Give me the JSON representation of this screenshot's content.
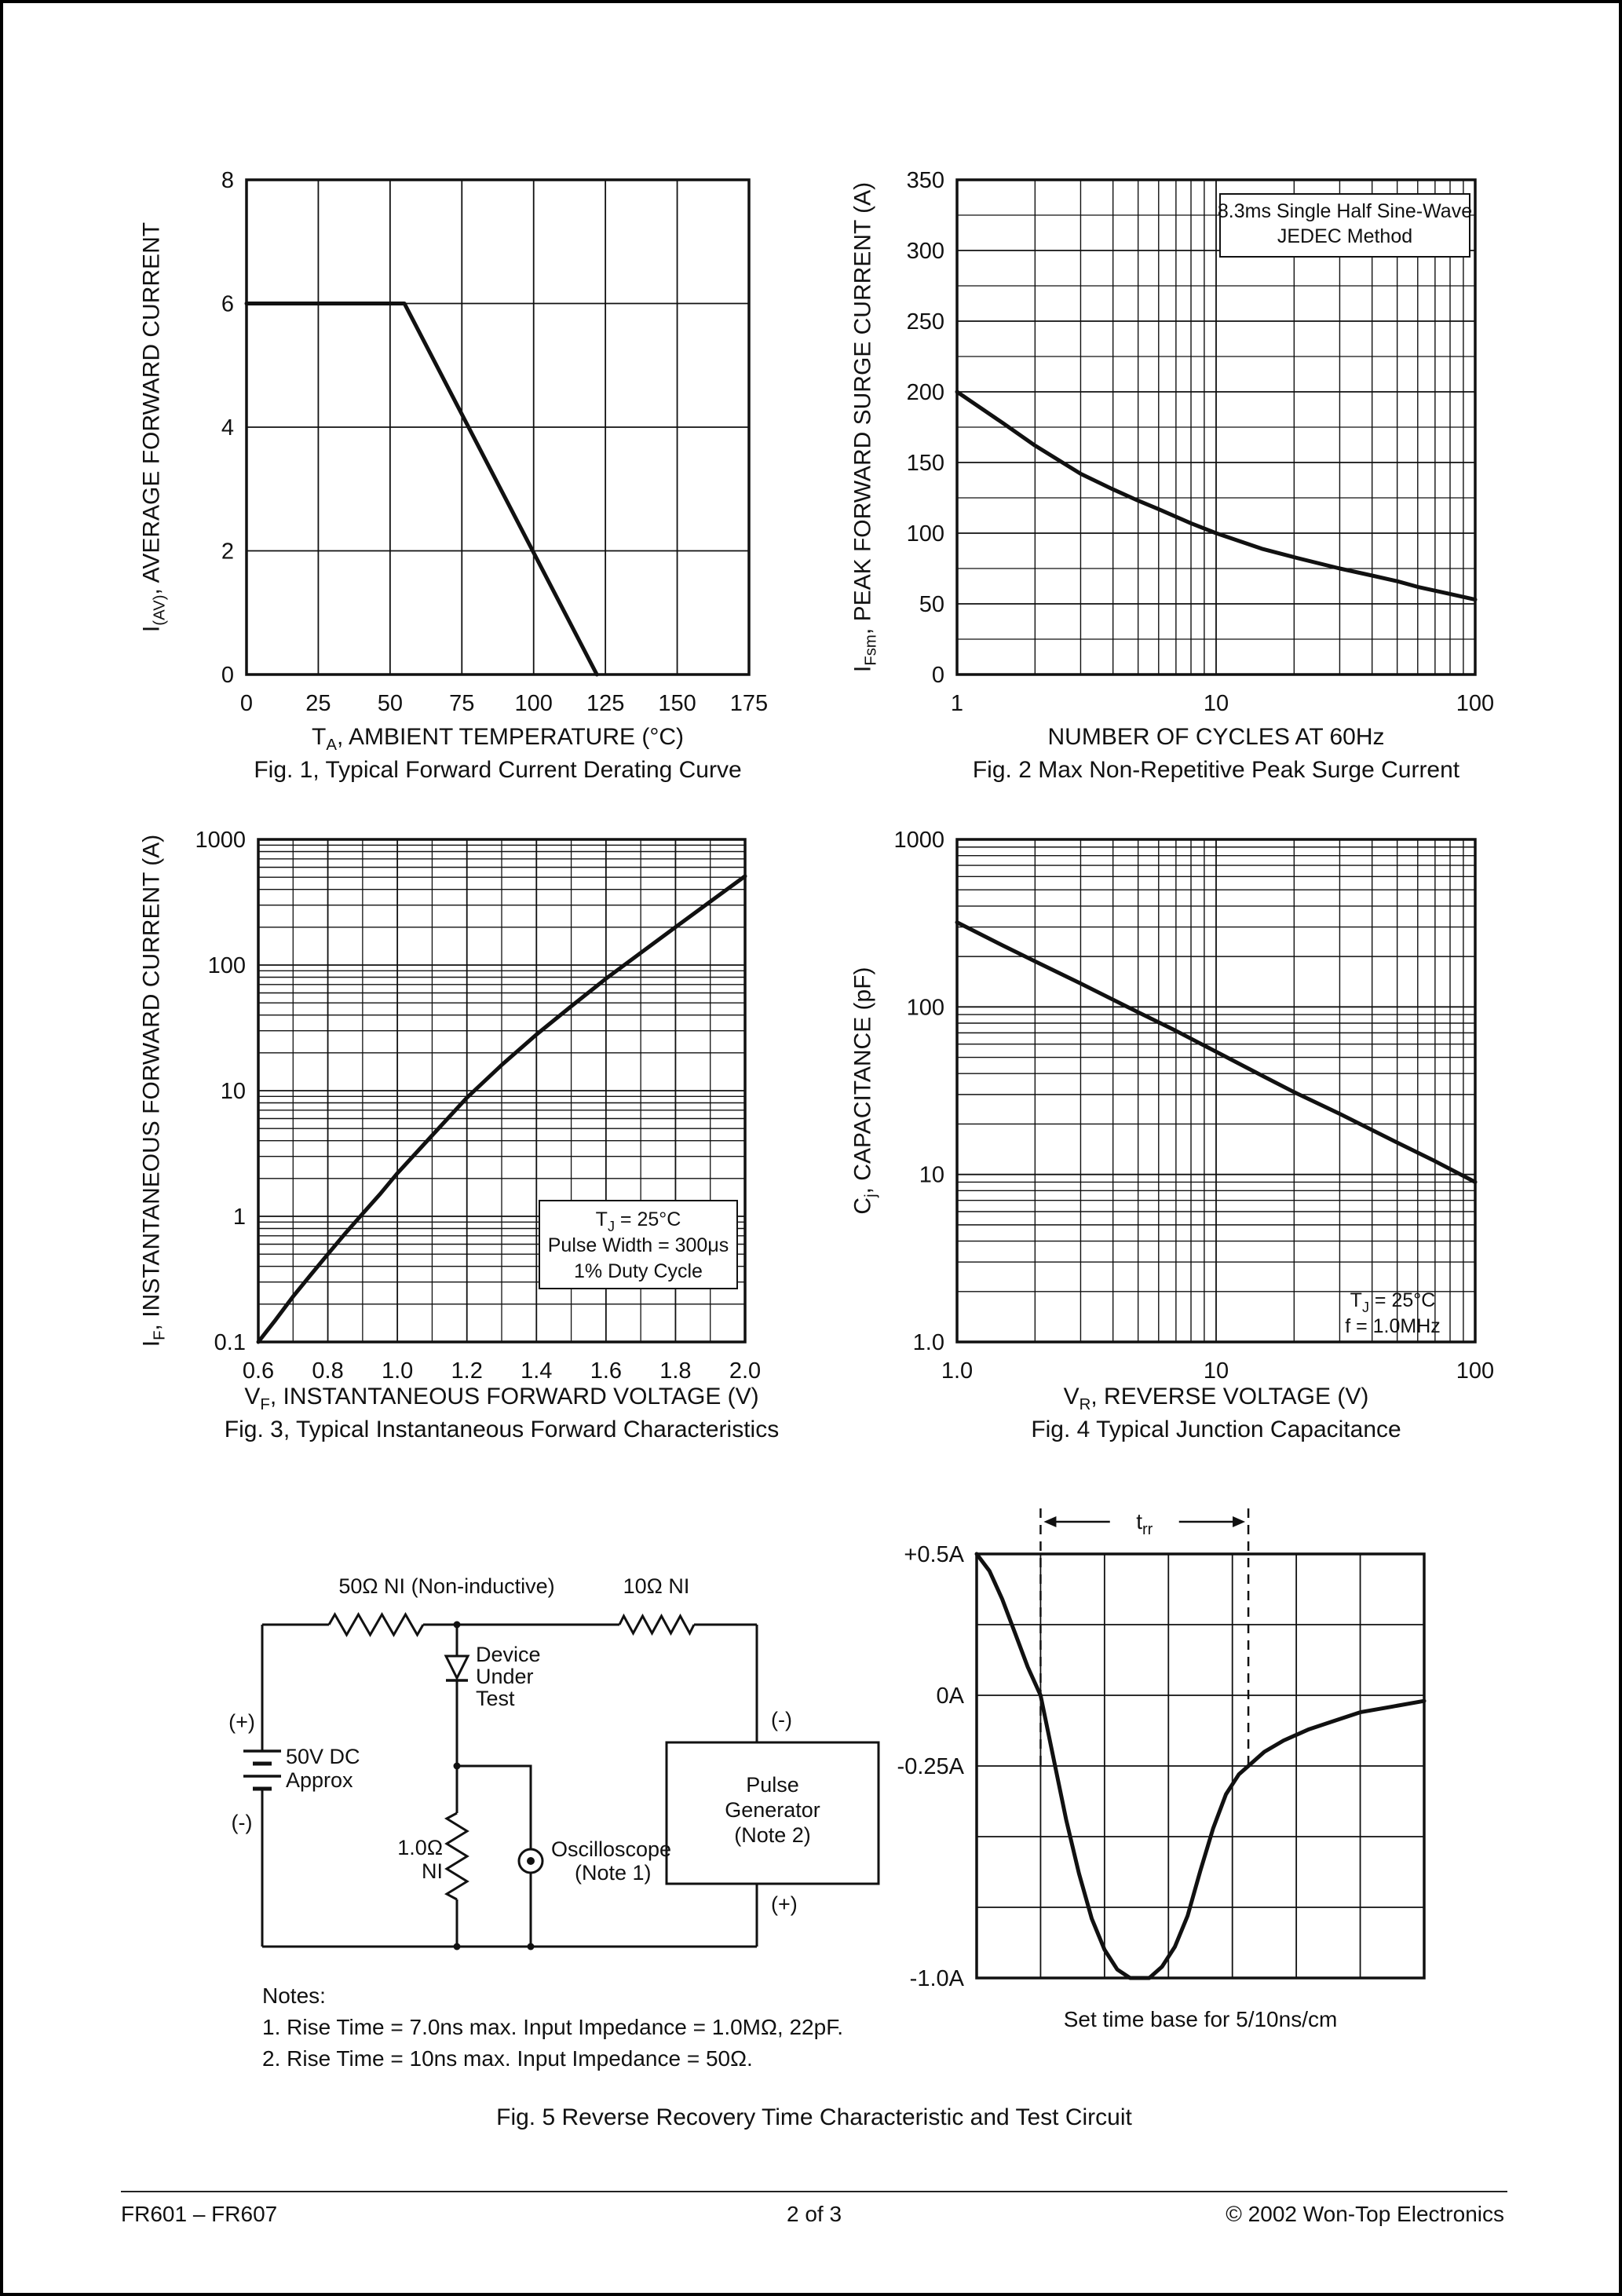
{
  "colors": {
    "ink": "#111111",
    "paper": "#ffffff"
  },
  "footer": {
    "left": "FR601 – FR607",
    "center": "2 of 3",
    "right": "© 2002 Won-Top Electronics"
  },
  "fig1": {
    "y_title": {
      "pre": "I",
      "sub": "(AV)",
      "rest": ", AVERAGE FORWARD CURRENT"
    },
    "x_title": {
      "pre": "T",
      "sub": "A",
      "rest": ", AMBIENT TEMPERATURE (°C)"
    },
    "caption": "Fig. 1, Typical Forward Current Derating Curve"
  },
  "fig2": {
    "y_title": {
      "pre": "I",
      "sub": "Fsm",
      "rest": ", PEAK FORWARD SURGE CURRENT (A)"
    },
    "x_title": {
      "text": "NUMBER OF CYCLES AT 60Hz"
    },
    "caption": "Fig. 2 Max Non-Repetitive Peak Surge Current"
  },
  "fig3": {
    "y_title": {
      "pre": "I",
      "sub": "F",
      "rest": ", INSTANTANEOUS FORWARD CURRENT (A)"
    },
    "x_title": {
      "pre": "V",
      "sub": "F",
      "rest": ", INSTANTANEOUS FORWARD VOLTAGE (V)"
    },
    "caption": "Fig. 3, Typical Instantaneous Forward Characteristics"
  },
  "fig4": {
    "y_title": {
      "pre": "C",
      "sub": "j",
      "rest": ", CAPACITANCE (pF)"
    },
    "x_title": {
      "pre": "V",
      "sub": "R",
      "rest": ", REVERSE VOLTAGE (V)"
    },
    "caption": "Fig. 4 Typical Junction Capacitance"
  },
  "fig5": {
    "caption": "Fig. 5 Reverse Recovery Time Characteristic and Test Circuit",
    "timebase": "Set time base for 5/10ns/cm",
    "notes": {
      "title": "Notes:",
      "line1": "1. Rise Time = 7.0ns max. Input Impedance = 1.0MΩ, 22pF.",
      "line2": "2. Rise Time = 10ns max. Input Impedance = 50Ω."
    },
    "circuit": {
      "r1_label": "50Ω NI (Non-inductive)",
      "r2_label": "10Ω NI",
      "dut": [
        "Device",
        "Under",
        "Test"
      ],
      "plus": "(+)",
      "minus": "(-)",
      "battery": [
        "50V DC",
        "Approx"
      ],
      "r3": [
        "1.0Ω",
        "NI"
      ],
      "scope": [
        "Oscilloscope",
        "(Note 1)"
      ],
      "pulse_gen": [
        "Pulse",
        "Generator",
        "(Note 2)"
      ],
      "pg_minus": "(-)",
      "pg_plus": "(+)"
    }
  },
  "chart_data": [
    {
      "id": "fig1",
      "type": "line",
      "title": "Fig. 1, Typical Forward Current Derating Curve",
      "xlabel": "TA, AMBIENT TEMPERATURE (°C)",
      "ylabel": "I(AV), AVERAGE FORWARD CURRENT",
      "x": {
        "scale": "linear",
        "min": 0,
        "max": 175,
        "ticks": [
          0,
          25,
          50,
          75,
          100,
          125,
          150,
          175
        ],
        "tick_labels": [
          "0",
          "25",
          "50",
          "75",
          "100",
          "125",
          "150",
          "175"
        ],
        "grid": [
          25,
          50,
          75,
          100,
          125,
          150
        ]
      },
      "y": {
        "scale": "linear",
        "min": 0,
        "max": 8,
        "ticks": [
          0,
          2,
          4,
          6,
          8
        ],
        "tick_labels": [
          "0",
          "2",
          "4",
          "6",
          "8"
        ],
        "grid": [
          2,
          4,
          6
        ]
      },
      "series": [
        {
          "name": "Typical forward current derating",
          "points": [
            [
              0,
              6
            ],
            [
              55,
              6
            ],
            [
              122,
              0
            ]
          ]
        }
      ]
    },
    {
      "id": "fig2",
      "type": "line",
      "title": "Fig. 2 Max Non-Repetitive Peak Surge Current",
      "xlabel": "NUMBER OF CYCLES AT 60Hz",
      "ylabel": "IFsm, PEAK FORWARD SURGE CURRENT (A)",
      "x": {
        "scale": "log",
        "min": 1,
        "max": 100,
        "ticks": [
          1,
          10,
          100
        ],
        "tick_labels": [
          "1",
          "10",
          "100"
        ]
      },
      "y": {
        "scale": "linear",
        "min": 0,
        "max": 350,
        "ticks": [
          0,
          50,
          100,
          150,
          200,
          250,
          300,
          350
        ],
        "tick_labels": [
          "0",
          "50",
          "100",
          "150",
          "200",
          "250",
          "300",
          "350"
        ],
        "grid": [
          50,
          100,
          150,
          200,
          250,
          300
        ],
        "minor_grid": [
          25,
          75,
          125,
          175,
          225,
          275,
          325
        ]
      },
      "annotation": {
        "box": true,
        "lines": [
          [
            {
              "t": "8.3ms Single Half Sine-Wave"
            }
          ],
          [
            {
              "t": "JEDEC Method"
            }
          ]
        ]
      },
      "series": [
        {
          "name": "Peak forward surge current",
          "points": [
            [
              1,
              200
            ],
            [
              1.5,
              178
            ],
            [
              2,
              162
            ],
            [
              3,
              142
            ],
            [
              4,
              131
            ],
            [
              5,
              123
            ],
            [
              6,
              117
            ],
            [
              8,
              107
            ],
            [
              10,
              100
            ],
            [
              15,
              89
            ],
            [
              20,
              83
            ],
            [
              30,
              75
            ],
            [
              40,
              70
            ],
            [
              50,
              66
            ],
            [
              60,
              62
            ],
            [
              80,
              57
            ],
            [
              100,
              53
            ]
          ]
        }
      ]
    },
    {
      "id": "fig3",
      "type": "line",
      "title": "Fig. 3, Typical Instantaneous Forward Characteristics",
      "xlabel": "VF, INSTANTANEOUS FORWARD VOLTAGE (V)",
      "ylabel": "IF, INSTANTANEOUS FORWARD CURRENT (A)",
      "x": {
        "scale": "linear",
        "min": 0.6,
        "max": 2.0,
        "ticks": [
          0.6,
          0.8,
          1.0,
          1.2,
          1.4,
          1.6,
          1.8,
          2.0
        ],
        "tick_labels": [
          "0.6",
          "0.8",
          "1.0",
          "1.2",
          "1.4",
          "1.6",
          "1.8",
          "2.0"
        ],
        "grid": [
          0.8,
          1.0,
          1.2,
          1.4,
          1.6,
          1.8
        ],
        "minor_grid": [
          0.7,
          0.9,
          1.1,
          1.3,
          1.5,
          1.7,
          1.9
        ]
      },
      "y": {
        "scale": "log",
        "min": 0.1,
        "max": 1000,
        "ticks": [
          0.1,
          1,
          10,
          100,
          1000
        ],
        "tick_labels": [
          "0.1",
          "1",
          "10",
          "100",
          "1000"
        ]
      },
      "annotation": {
        "box": true,
        "lines": [
          [
            {
              "t": "T"
            },
            {
              "sub": "J"
            },
            {
              "t": " = 25°C"
            }
          ],
          [
            {
              "t": "Pulse Width = 300μs"
            }
          ],
          [
            {
              "t": "1% Duty Cycle"
            }
          ]
        ]
      },
      "series": [
        {
          "name": "Instantaneous forward current",
          "points": [
            [
              0.6,
              0.1
            ],
            [
              0.65,
              0.15
            ],
            [
              0.7,
              0.23
            ],
            [
              0.75,
              0.34
            ],
            [
              0.8,
              0.5
            ],
            [
              0.85,
              0.73
            ],
            [
              0.9,
              1.05
            ],
            [
              0.95,
              1.5
            ],
            [
              1.0,
              2.2
            ],
            [
              1.1,
              4.4
            ],
            [
              1.2,
              8.8
            ],
            [
              1.3,
              16
            ],
            [
              1.4,
              28
            ],
            [
              1.5,
              47
            ],
            [
              1.6,
              78
            ],
            [
              1.7,
              125
            ],
            [
              1.8,
              200
            ],
            [
              1.9,
              320
            ],
            [
              2.0,
              510
            ]
          ]
        }
      ]
    },
    {
      "id": "fig4",
      "type": "line",
      "title": "Fig. 4 Typical Junction Capacitance",
      "xlabel": "VR, REVERSE VOLTAGE (V)",
      "ylabel": "Cj, CAPACITANCE (pF)",
      "x": {
        "scale": "log",
        "min": 1,
        "max": 100,
        "ticks": [
          1,
          10,
          100
        ],
        "tick_labels": [
          "1.0",
          "10",
          "100"
        ]
      },
      "y": {
        "scale": "log",
        "min": 1,
        "max": 1000,
        "ticks": [
          1,
          10,
          100,
          1000
        ],
        "tick_labels": [
          "1.0",
          "10",
          "100",
          "1000"
        ]
      },
      "annotation": {
        "box": false,
        "lines": [
          [
            {
              "t": "T"
            },
            {
              "sub": "J"
            },
            {
              "t": " = 25°C"
            }
          ],
          [
            {
              "t": "f = 1.0MHz"
            }
          ]
        ]
      },
      "series": [
        {
          "name": "Junction capacitance",
          "points": [
            [
              1,
              320
            ],
            [
              1.5,
              233
            ],
            [
              2,
              187
            ],
            [
              3,
              138
            ],
            [
              5,
              93
            ],
            [
              7,
              72
            ],
            [
              10,
              54
            ],
            [
              15,
              39
            ],
            [
              20,
              31
            ],
            [
              30,
              23
            ],
            [
              50,
              15.5
            ],
            [
              70,
              12
            ],
            [
              100,
              9
            ]
          ]
        }
      ]
    },
    {
      "id": "fig5_waveform",
      "type": "line",
      "title": "Reverse recovery current waveform",
      "xlabel": "",
      "ylabel": "",
      "x": {
        "scale": "linear",
        "min": 0,
        "max": 7,
        "ticks": [],
        "tick_labels": [],
        "grid": [
          1,
          2,
          3,
          4,
          5,
          6
        ]
      },
      "y": {
        "scale": "linear",
        "min": -1.0,
        "max": 0.5,
        "ticks": [
          0.5,
          0,
          -0.25,
          -1.0
        ],
        "tick_labels": [
          "+0.5A",
          "0A",
          "-0.25A",
          "-1.0A"
        ],
        "grid": [
          0.25,
          0,
          -0.25,
          -0.5,
          -0.75
        ]
      },
      "trr": {
        "tokens": [
          {
            "t": "t"
          },
          {
            "sub": "rr"
          }
        ],
        "x1": 1.0,
        "x2": 4.25
      },
      "series": [
        {
          "name": "Reverse recovery current",
          "points": [
            [
              0,
              0.5
            ],
            [
              0.2,
              0.44
            ],
            [
              0.4,
              0.34
            ],
            [
              0.6,
              0.22
            ],
            [
              0.8,
              0.1
            ],
            [
              1.0,
              0
            ],
            [
              1.2,
              -0.22
            ],
            [
              1.4,
              -0.44
            ],
            [
              1.6,
              -0.63
            ],
            [
              1.8,
              -0.79
            ],
            [
              2.0,
              -0.9
            ],
            [
              2.2,
              -0.97
            ],
            [
              2.4,
              -1.0
            ],
            [
              2.7,
              -1.0
            ],
            [
              2.9,
              -0.96
            ],
            [
              3.1,
              -0.89
            ],
            [
              3.3,
              -0.78
            ],
            [
              3.5,
              -0.62
            ],
            [
              3.7,
              -0.47
            ],
            [
              3.9,
              -0.35
            ],
            [
              4.1,
              -0.28
            ],
            [
              4.25,
              -0.25
            ],
            [
              4.5,
              -0.2
            ],
            [
              4.8,
              -0.16
            ],
            [
              5.2,
              -0.12
            ],
            [
              5.6,
              -0.09
            ],
            [
              6.0,
              -0.06
            ],
            [
              6.5,
              -0.04
            ],
            [
              7.0,
              -0.02
            ]
          ]
        }
      ]
    }
  ]
}
